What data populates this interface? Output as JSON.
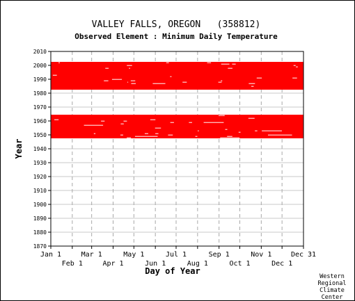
{
  "chart_data": {
    "type": "scatter",
    "title": "VALLEY FALLS, OREGON   (358812)",
    "subtitle": "Observed Element : Minimum Daily Temperature",
    "xlabel": "Day of Year",
    "ylabel": "Year",
    "xlim": [
      1,
      366
    ],
    "ylim": [
      1870,
      2010
    ],
    "y_ticks": [
      1870,
      1880,
      1890,
      1900,
      1910,
      1920,
      1930,
      1940,
      1950,
      1960,
      1970,
      1980,
      1990,
      2000,
      2010
    ],
    "x_ticks_top": [
      {
        "label": "Jan 1",
        "day": 1
      },
      {
        "label": "Mar 1",
        "day": 60
      },
      {
        "label": "May 1",
        "day": 121
      },
      {
        "label": "Jul 1",
        "day": 182
      },
      {
        "label": "Sep 1",
        "day": 244
      },
      {
        "label": "Nov 1",
        "day": 305
      },
      {
        "label": "Dec 31",
        "day": 366
      }
    ],
    "x_ticks_bottom": [
      {
        "label": "Feb 1",
        "day": 32
      },
      {
        "label": "Apr 1",
        "day": 91
      },
      {
        "label": "Jun 1",
        "day": 152
      },
      {
        "label": "Aug 1",
        "day": 213
      },
      {
        "label": "Oct 1",
        "day": 274
      },
      {
        "label": "Dec 1",
        "day": 335
      }
    ],
    "grid": true,
    "series": [
      {
        "observed_year_ranges": [
          [
            1948,
            1964
          ],
          [
            1983,
            2002
          ]
        ]
      }
    ],
    "marker_color": "#ff0000"
  },
  "credit": [
    "Western",
    "Regional",
    "Climate",
    "Center"
  ]
}
